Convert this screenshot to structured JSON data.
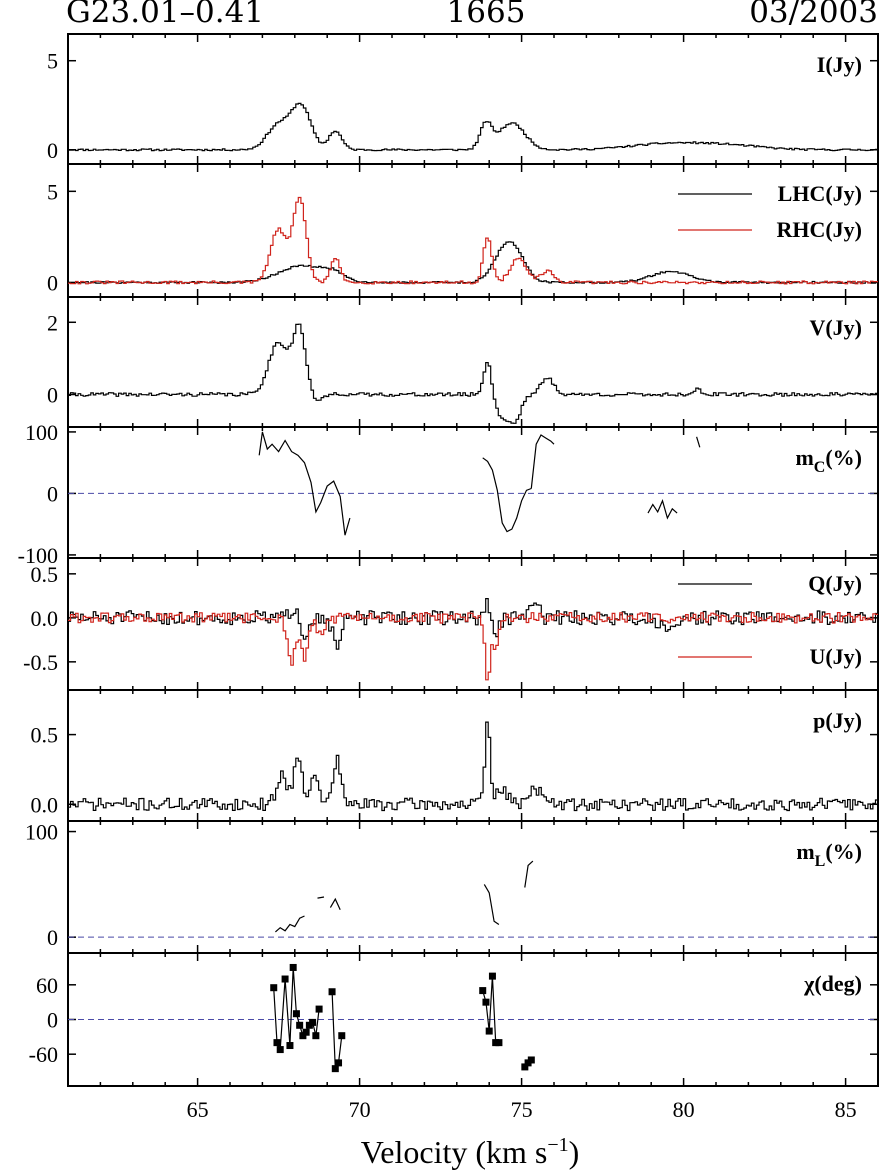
{
  "header": {
    "source": "G23.01–0.41",
    "frequency": "1665",
    "date": "03/2003"
  },
  "colors": {
    "black": "#000000",
    "red": "#d0241c",
    "zero_line": "#4a4aa8"
  },
  "chart_data": {
    "type": "line",
    "step": true,
    "xlim": [
      61,
      86
    ],
    "xticks": [
      65,
      70,
      75,
      80,
      85
    ],
    "xlabel_main": "Velocity (km s",
    "xlabel_sup": "−1",
    "xlabel_close": ")",
    "grid": false,
    "panels": [
      {
        "id": "I",
        "label": "I(Jy)",
        "ylim": [
          -0.8,
          6.5
        ],
        "yticks": [
          {
            "v": 0,
            "t": "0"
          },
          {
            "v": 5,
            "t": "5"
          }
        ],
        "series": [
          {
            "name": "",
            "color": "black",
            "style": "step",
            "base": 0.0,
            "noise": 0.05,
            "seed": 11,
            "features": [
              [
                67.5,
                0.35,
                1.4
              ],
              [
                68.2,
                0.3,
                2.4
              ],
              [
                69.25,
                0.2,
                1.05
              ],
              [
                73.9,
                0.18,
                1.4
              ],
              [
                74.7,
                0.4,
                1.5
              ],
              [
                79.6,
                1.2,
                0.35
              ],
              [
                81.5,
                1.0,
                0.2
              ]
            ]
          }
        ],
        "zero_line": false
      },
      {
        "id": "LR",
        "ylim": [
          -0.8,
          6.5
        ],
        "yticks": [
          {
            "v": 0,
            "t": "0"
          },
          {
            "v": 5,
            "t": "5"
          }
        ],
        "series": [
          {
            "name": "LHC(Jy)",
            "color": "black",
            "style": "step",
            "base": 0.0,
            "noise": 0.05,
            "seed": 21,
            "features": [
              [
                68.2,
                0.7,
                0.9
              ],
              [
                69.2,
                0.35,
                0.4
              ],
              [
                74.4,
                0.35,
                1.2
              ],
              [
                74.8,
                0.35,
                1.4
              ],
              [
                79.6,
                0.6,
                0.6
              ]
            ]
          },
          {
            "name": "RHC(Jy)",
            "color": "red",
            "style": "step",
            "base": 0.0,
            "noise": 0.08,
            "seed": 31,
            "features": [
              [
                67.5,
                0.25,
                2.9
              ],
              [
                68.15,
                0.2,
                4.6
              ],
              [
                69.25,
                0.15,
                1.3
              ],
              [
                73.95,
                0.13,
                2.5
              ],
              [
                74.9,
                0.25,
                1.3
              ],
              [
                75.8,
                0.2,
                0.6
              ]
            ]
          }
        ],
        "zero_line": false
      },
      {
        "id": "V",
        "label": "V(Jy)",
        "ylim": [
          -0.9,
          2.7
        ],
        "yticks": [
          {
            "v": 0,
            "t": "0"
          },
          {
            "v": 2,
            "t": "2"
          }
        ],
        "series": [
          {
            "name": "",
            "color": "black",
            "style": "step",
            "base": 0.0,
            "noise": 0.05,
            "seed": 41,
            "features": [
              [
                67.5,
                0.3,
                1.45
              ],
              [
                68.15,
                0.2,
                1.85
              ],
              [
                68.6,
                0.3,
                -0.2
              ],
              [
                69.2,
                0.2,
                0.05
              ],
              [
                73.95,
                0.12,
                0.95
              ],
              [
                74.4,
                0.2,
                -0.6
              ],
              [
                74.8,
                0.18,
                -0.7
              ],
              [
                75.8,
                0.2,
                0.45
              ],
              [
                80.4,
                0.12,
                0.15
              ]
            ]
          }
        ],
        "zero_line": false
      },
      {
        "id": "mc",
        "label": "m",
        "label_sub": "C",
        "label_tail": "(%)",
        "ylim": [
          -105,
          108
        ],
        "yticks": [
          {
            "v": -100,
            "t": "-100"
          },
          {
            "v": 0,
            "t": "0"
          },
          {
            "v": 100,
            "t": "100"
          }
        ],
        "series": [
          {
            "name": "",
            "color": "black",
            "style": "segments",
            "segments": [
              {
                "x": [
                  66.9,
                  67.0,
                  67.15,
                  67.3,
                  67.5,
                  67.7,
                  67.9,
                  68.1,
                  68.3,
                  68.5,
                  68.65,
                  68.8,
                  69.0,
                  69.2,
                  69.4,
                  69.55,
                  69.7
                ],
                "y": [
                  62,
                  100,
                  72,
                  80,
                  68,
                  86,
                  68,
                  62,
                  50,
                  18,
                  -30,
                  -15,
                  12,
                  20,
                  -5,
                  -68,
                  -40
                ]
              },
              {
                "x": [
                  73.8,
                  73.95,
                  74.1,
                  74.25,
                  74.4,
                  74.55,
                  74.7,
                  74.85,
                  75.0,
                  75.15,
                  75.3
                ],
                "y": [
                  58,
                  52,
                  38,
                  5,
                  -48,
                  -62,
                  -58,
                  -40,
                  -12,
                  5,
                  8
                ]
              },
              {
                "x": [
                  75.3,
                  75.45,
                  75.6,
                  75.75,
                  75.9,
                  76.0
                ],
                "y": [
                  8,
                  80,
                  95,
                  90,
                  85,
                  80
                ]
              },
              {
                "x": [
                  78.9,
                  79.05,
                  79.2,
                  79.35,
                  79.5,
                  79.65,
                  79.8
                ],
                "y": [
                  -32,
                  -18,
                  -30,
                  -12,
                  -40,
                  -25,
                  -32
                ]
              },
              {
                "x": [
                  80.4,
                  80.5
                ],
                "y": [
                  92,
                  75
                ]
              }
            ]
          }
        ],
        "zero_line": true
      },
      {
        "id": "QU",
        "ylim": [
          -0.82,
          0.68
        ],
        "yticks": [
          {
            "v": -0.5,
            "t": "-0.5"
          },
          {
            "v": 0,
            "t": "0.0"
          },
          {
            "v": 0.5,
            "t": "0.5"
          }
        ],
        "series": [
          {
            "name": "Q(Jy)",
            "color": "black",
            "style": "step",
            "base": 0.0,
            "noise": 0.08,
            "seed": 51,
            "features": [
              [
                68.0,
                0.12,
                0.12
              ],
              [
                68.3,
                0.1,
                -0.2
              ],
              [
                69.3,
                0.12,
                -0.35
              ],
              [
                73.95,
                0.06,
                0.25
              ],
              [
                74.2,
                0.1,
                -0.22
              ],
              [
                75.4,
                0.12,
                0.2
              ],
              [
                79.5,
                0.3,
                -0.08
              ]
            ]
          },
          {
            "name": "U(Jy)",
            "color": "red",
            "style": "step",
            "base": 0.0,
            "noise": 0.06,
            "seed": 61,
            "features": [
              [
                67.9,
                0.12,
                -0.5
              ],
              [
                68.3,
                0.12,
                -0.45
              ],
              [
                68.8,
                0.12,
                -0.2
              ],
              [
                73.95,
                0.08,
                -0.72
              ],
              [
                74.2,
                0.1,
                -0.3
              ]
            ]
          }
        ],
        "zero_line": false
      },
      {
        "id": "p",
        "label": "p(Jy)",
        "ylim": [
          -0.12,
          0.82
        ],
        "yticks": [
          {
            "v": 0,
            "t": "0.0"
          },
          {
            "v": 0.5,
            "t": "0.5"
          }
        ],
        "series": [
          {
            "name": "",
            "color": "black",
            "style": "step",
            "base": 0.0,
            "noise": 0.045,
            "seed": 71,
            "features": [
              [
                67.6,
                0.15,
                0.22
              ],
              [
                68.1,
                0.12,
                0.38
              ],
              [
                68.6,
                0.15,
                0.18
              ],
              [
                69.3,
                0.12,
                0.32
              ],
              [
                73.95,
                0.08,
                0.6
              ],
              [
                74.4,
                0.15,
                0.12
              ],
              [
                75.4,
                0.2,
                0.12
              ]
            ]
          }
        ],
        "zero_line": false
      },
      {
        "id": "mL",
        "label": "m",
        "label_sub": "L",
        "label_tail": "(%)",
        "ylim": [
          -15,
          110
        ],
        "yticks": [
          {
            "v": 0,
            "t": "0"
          },
          {
            "v": 100,
            "t": "100"
          }
        ],
        "series": [
          {
            "name": "",
            "color": "black",
            "style": "segments",
            "segments": [
              {
                "x": [
                  67.4,
                  67.55,
                  67.7,
                  67.85,
                  68.0,
                  68.15,
                  68.3
                ],
                "y": [
                  5,
                  9,
                  6,
                  12,
                  10,
                  18,
                  20
                ]
              },
              {
                "x": [
                  68.7,
                  68.9
                ],
                "y": [
                  37,
                  38
                ]
              },
              {
                "x": [
                  69.1,
                  69.25,
                  69.4
                ],
                "y": [
                  28,
                  36,
                  26
                ]
              },
              {
                "x": [
                  73.85,
                  74.0,
                  74.15,
                  74.3
                ],
                "y": [
                  50,
                  42,
                  15,
                  12
                ]
              },
              {
                "x": [
                  75.1,
                  75.2,
                  75.35
                ],
                "y": [
                  47,
                  68,
                  72
                ]
              }
            ]
          }
        ],
        "zero_line": true
      },
      {
        "id": "chi",
        "label": "χ(deg)",
        "ylim": [
          -115,
          115
        ],
        "yticks": [
          {
            "v": -60,
            "t": "-60"
          },
          {
            "v": 0,
            "t": "0"
          },
          {
            "v": 60,
            "t": "60"
          }
        ],
        "series": [
          {
            "name": "",
            "color": "black",
            "style": "markers",
            "segments": [
              {
                "x": [
                  67.35,
                  67.45,
                  67.55,
                  67.7,
                  67.85,
                  67.95,
                  68.05,
                  68.15,
                  68.25,
                  68.35,
                  68.45,
                  68.55,
                  68.65,
                  68.75
                ],
                "y": [
                  55,
                  -40,
                  -52,
                  70,
                  -45,
                  90,
                  10,
                  -10,
                  -28,
                  -22,
                  -10,
                  -5,
                  -28,
                  18
                ]
              },
              {
                "x": [
                  69.15,
                  69.25,
                  69.35,
                  69.45
                ],
                "y": [
                  48,
                  -85,
                  -75,
                  -28
                ]
              },
              {
                "x": [
                  73.8,
                  73.9,
                  74.0,
                  74.1,
                  74.2,
                  74.3
                ],
                "y": [
                  50,
                  30,
                  -20,
                  75,
                  -40,
                  -40
                ]
              },
              {
                "x": [
                  75.1,
                  75.2,
                  75.3
                ],
                "y": [
                  -82,
                  -75,
                  -70
                ]
              }
            ]
          }
        ],
        "zero_line": true
      }
    ]
  }
}
